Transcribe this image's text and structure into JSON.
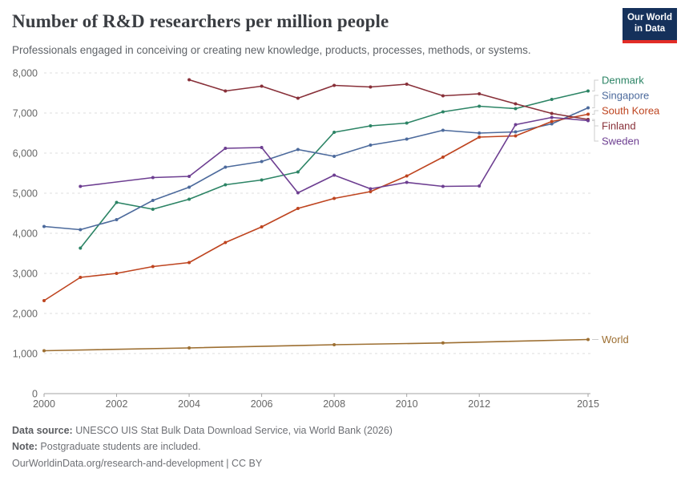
{
  "header": {
    "title": "Number of R&D researchers per million people",
    "subtitle": "Professionals engaged in conceiving or creating new knowledge, products, processes, methods, or systems.",
    "logo": {
      "line1": "Our World",
      "line2": "in Data",
      "bg_color": "#15315b",
      "accent_color": "#e22c27"
    }
  },
  "chart_data": {
    "type": "line",
    "title": "Number of R&D researchers per million people",
    "xlabel": "",
    "ylabel": "",
    "xlim": [
      2000,
      2015
    ],
    "ylim": [
      0,
      8000
    ],
    "x_ticks": [
      2000,
      2002,
      2004,
      2006,
      2008,
      2010,
      2012,
      2015
    ],
    "y_ticks": [
      0,
      1000,
      2000,
      3000,
      4000,
      5000,
      6000,
      7000,
      8000
    ],
    "grid": "horizontal-dashed",
    "legend_position": "right",
    "axis_color": "#a3a3a3",
    "grid_color": "#dddddd",
    "tick_label_color": "#666666",
    "connector_color": "#cccccc",
    "series": [
      {
        "name": "Denmark",
        "color": "#2C8465",
        "points": [
          [
            2001,
            3630
          ],
          [
            2002,
            4770
          ],
          [
            2003,
            4600
          ],
          [
            2004,
            4850
          ],
          [
            2005,
            5210
          ],
          [
            2006,
            5330
          ],
          [
            2007,
            5530
          ],
          [
            2008,
            6520
          ],
          [
            2009,
            6680
          ],
          [
            2010,
            6750
          ],
          [
            2011,
            7030
          ],
          [
            2012,
            7170
          ],
          [
            2013,
            7110
          ],
          [
            2014,
            7340
          ],
          [
            2015,
            7550
          ]
        ]
      },
      {
        "name": "Singapore",
        "color": "#4C6A9C",
        "points": [
          [
            2000,
            4170
          ],
          [
            2001,
            4090
          ],
          [
            2002,
            4340
          ],
          [
            2003,
            4820
          ],
          [
            2004,
            5150
          ],
          [
            2005,
            5650
          ],
          [
            2006,
            5790
          ],
          [
            2007,
            6090
          ],
          [
            2008,
            5920
          ],
          [
            2009,
            6200
          ],
          [
            2010,
            6350
          ],
          [
            2011,
            6570
          ],
          [
            2012,
            6500
          ],
          [
            2013,
            6530
          ],
          [
            2014,
            6730
          ],
          [
            2015,
            7130
          ]
        ]
      },
      {
        "name": "South Korea",
        "color": "#BE441F",
        "points": [
          [
            2000,
            2320
          ],
          [
            2001,
            2900
          ],
          [
            2002,
            3000
          ],
          [
            2003,
            3170
          ],
          [
            2004,
            3270
          ],
          [
            2005,
            3770
          ],
          [
            2006,
            4160
          ],
          [
            2007,
            4620
          ],
          [
            2008,
            4870
          ],
          [
            2009,
            5040
          ],
          [
            2010,
            5430
          ],
          [
            2011,
            5900
          ],
          [
            2012,
            6400
          ],
          [
            2013,
            6430
          ],
          [
            2014,
            6790
          ],
          [
            2015,
            6970
          ]
        ]
      },
      {
        "name": "Finland",
        "color": "#883039",
        "points": [
          [
            2004,
            7830
          ],
          [
            2005,
            7550
          ],
          [
            2006,
            7670
          ],
          [
            2007,
            7370
          ],
          [
            2008,
            7690
          ],
          [
            2009,
            7650
          ],
          [
            2010,
            7720
          ],
          [
            2011,
            7430
          ],
          [
            2012,
            7480
          ],
          [
            2013,
            7230
          ],
          [
            2014,
            6990
          ],
          [
            2015,
            6840
          ]
        ]
      },
      {
        "name": "Sweden",
        "color": "#6D3E91",
        "points": [
          [
            2001,
            5170
          ],
          [
            2003,
            5390
          ],
          [
            2004,
            5420
          ],
          [
            2005,
            6120
          ],
          [
            2006,
            6140
          ],
          [
            2007,
            5010
          ],
          [
            2008,
            5450
          ],
          [
            2009,
            5110
          ],
          [
            2010,
            5270
          ],
          [
            2011,
            5170
          ],
          [
            2012,
            5180
          ],
          [
            2013,
            6710
          ],
          [
            2014,
            6890
          ],
          [
            2015,
            6810
          ]
        ]
      },
      {
        "name": "World",
        "color": "#9D6F32",
        "points": [
          [
            2000,
            1070
          ],
          [
            2004,
            1140
          ],
          [
            2008,
            1220
          ],
          [
            2011,
            1265
          ],
          [
            2015,
            1350
          ]
        ]
      }
    ]
  },
  "footer": {
    "datasource_label": "Data source:",
    "datasource_text": " UNESCO UIS Stat Bulk Data Download Service, via World Bank (2026)",
    "note_label": "Note:",
    "note_text": " Postgraduate students are included.",
    "link_text": "OurWorldinData.org/research-and-development",
    "separator": " | ",
    "license_text": "CC BY"
  }
}
